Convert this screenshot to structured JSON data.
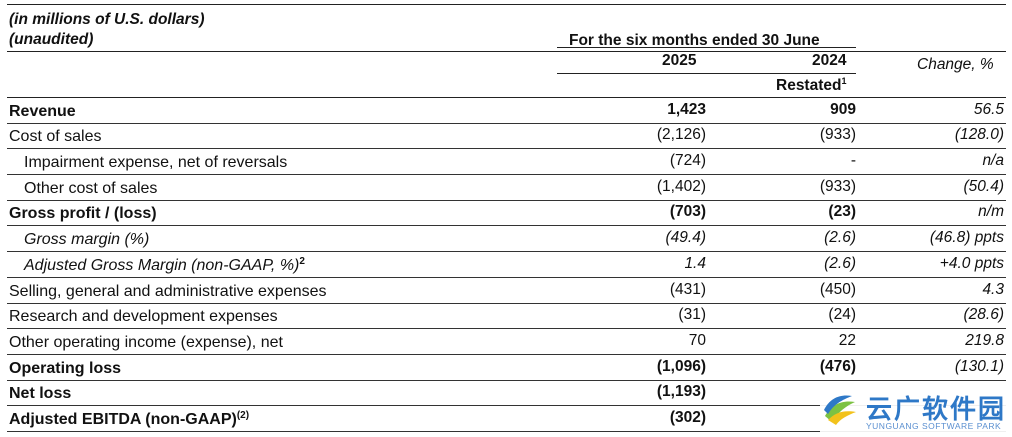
{
  "header": {
    "unit_line1": "(in millions of U.S. dollars)",
    "unit_line2": "(unaudited)",
    "period": "For the six months ended 30 June",
    "year_current": "2025",
    "year_prior": "2024",
    "restated": "Restated",
    "restated_note": "1",
    "change_label": "Change, %"
  },
  "rows": [
    {
      "label": "Revenue",
      "note": "",
      "v2025": "1,423",
      "v2024": "909",
      "change": "56.5"
    },
    {
      "label": "Cost of sales",
      "note": "",
      "v2025": "(2,126)",
      "v2024": "(933)",
      "change": "(128.0)"
    },
    {
      "label": "Impairment expense, net of reversals",
      "note": "",
      "v2025": "(724)",
      "v2024": "-",
      "change": "n/a"
    },
    {
      "label": "Other cost of sales",
      "note": "",
      "v2025": "(1,402)",
      "v2024": "(933)",
      "change": "(50.4)"
    },
    {
      "label": "Gross profit / (loss)",
      "note": "",
      "v2025": "(703)",
      "v2024": "(23)",
      "change": "n/m"
    },
    {
      "label": "Gross margin (%)",
      "note": "",
      "v2025": "(49.4)",
      "v2024": "(2.6)",
      "change": "(46.8) ppts"
    },
    {
      "label": "Adjusted Gross Margin (non-GAAP, %)",
      "note": "2",
      "v2025": "1.4",
      "v2024": "(2.6)",
      "change": "+4.0 ppts"
    },
    {
      "label": "Selling, general and administrative expenses",
      "note": "",
      "v2025": "(431)",
      "v2024": "(450)",
      "change": "4.3"
    },
    {
      "label": "Research and development expenses",
      "note": "",
      "v2025": "(31)",
      "v2024": "(24)",
      "change": "(28.6)"
    },
    {
      "label": "Other operating income (expense), net",
      "note": "",
      "v2025": "70",
      "v2024": "22",
      "change": "219.8"
    },
    {
      "label": "Operating loss",
      "note": "",
      "v2025": "(1,096)",
      "v2024": "(476)",
      "change": "(130.1)"
    },
    {
      "label": "Net loss",
      "note": "",
      "v2025": "(1,193)",
      "v2024": "",
      "change": ""
    },
    {
      "label": "Adjusted EBITDA (non-GAAP)",
      "note": "(2)",
      "v2025": "(302)",
      "v2024": "",
      "change": ""
    }
  ],
  "watermark": {
    "chinese": "云广软件园",
    "english": "YUNGUANG SOFTWARE PARK",
    "logo_icon": "wave-logo-icon",
    "colors": {
      "blue": "#2e78c7",
      "green": "#7cc243",
      "yellow": "#f2c21b"
    }
  }
}
